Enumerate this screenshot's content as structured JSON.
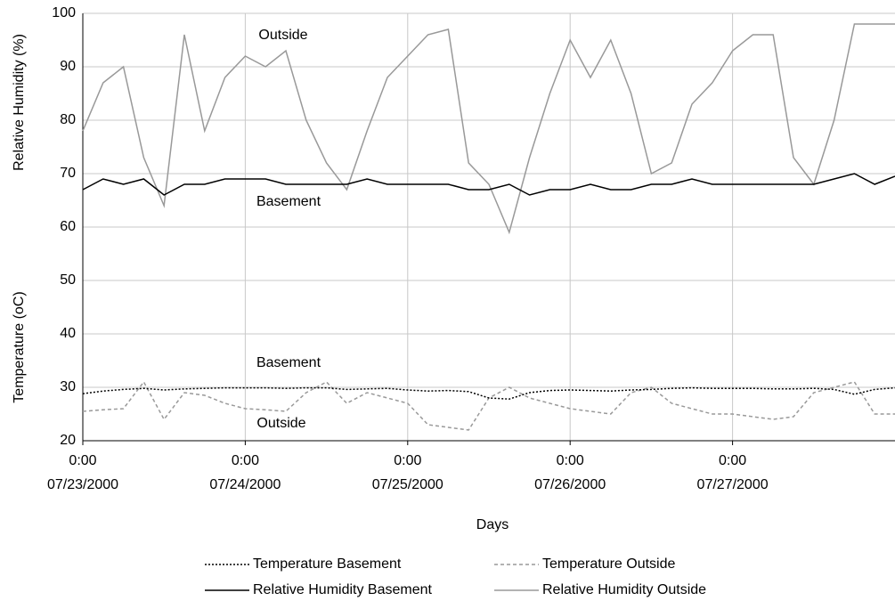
{
  "chart_data": {
    "type": "line",
    "y_label_upper": "Relative Humidity (%)",
    "y_label_lower": "Temperature (oC)",
    "x_label": "Days",
    "annotations": [
      "Outside",
      "Basement",
      "Basement",
      "Outside"
    ],
    "x": [
      "2000-07-23T00:00",
      "2000-07-23T03:00",
      "2000-07-23T06:00",
      "2000-07-23T09:00",
      "2000-07-23T12:00",
      "2000-07-23T15:00",
      "2000-07-23T18:00",
      "2000-07-23T21:00",
      "2000-07-24T00:00",
      "2000-07-24T03:00",
      "2000-07-24T06:00",
      "2000-07-24T09:00",
      "2000-07-24T12:00",
      "2000-07-24T15:00",
      "2000-07-24T18:00",
      "2000-07-24T21:00",
      "2000-07-25T00:00",
      "2000-07-25T03:00",
      "2000-07-25T06:00",
      "2000-07-25T09:00",
      "2000-07-25T12:00",
      "2000-07-25T15:00",
      "2000-07-25T18:00",
      "2000-07-25T21:00",
      "2000-07-26T00:00",
      "2000-07-26T03:00",
      "2000-07-26T06:00",
      "2000-07-26T09:00",
      "2000-07-26T12:00",
      "2000-07-26T15:00",
      "2000-07-26T18:00",
      "2000-07-26T21:00",
      "2000-07-27T00:00",
      "2000-07-27T03:00",
      "2000-07-27T06:00",
      "2000-07-27T09:00",
      "2000-07-27T12:00",
      "2000-07-27T15:00",
      "2000-07-27T18:00",
      "2000-07-27T21:00",
      "2000-07-28T00:00"
    ],
    "xlim": [
      "2000-07-23T00:00",
      "2000-07-28T00:00"
    ],
    "xticks": [
      {
        "value": "2000-07-23T00:00",
        "label": [
          "0:00",
          "07/23/2000"
        ]
      },
      {
        "value": "2000-07-24T00:00",
        "label": [
          "0:00",
          "07/24/2000"
        ]
      },
      {
        "value": "2000-07-25T00:00",
        "label": [
          "0:00",
          "07/25/2000"
        ]
      },
      {
        "value": "2000-07-26T00:00",
        "label": [
          "0:00",
          "07/26/2000"
        ]
      },
      {
        "value": "2000-07-27T00:00",
        "label": [
          "0:00",
          "07/27/2000"
        ]
      }
    ],
    "ylim": [
      20,
      100
    ],
    "yticks": [
      20,
      30,
      40,
      50,
      60,
      70,
      80,
      90,
      100
    ],
    "grid": true,
    "series": [
      {
        "name": "Temperature Basement",
        "color": "#000000",
        "dash": "dotted",
        "values": [
          28.8,
          29.3,
          29.6,
          29.8,
          29.5,
          29.7,
          29.8,
          29.9,
          29.9,
          29.9,
          29.8,
          29.9,
          29.9,
          29.6,
          29.7,
          29.8,
          29.5,
          29.3,
          29.4,
          29.2,
          28.0,
          27.8,
          29.0,
          29.4,
          29.5,
          29.4,
          29.3,
          29.5,
          29.6,
          29.8,
          29.9,
          29.8,
          29.8,
          29.8,
          29.7,
          29.7,
          29.8,
          29.6,
          28.7,
          29.6,
          29.9
        ]
      },
      {
        "name": "Temperature Outside",
        "color": "#999999",
        "dash": "dashed",
        "values": [
          25.5,
          25.8,
          26.0,
          31.0,
          24.0,
          29.0,
          28.5,
          27.0,
          26.0,
          25.8,
          25.5,
          29.0,
          31.0,
          27.0,
          29.0,
          28.0,
          27.0,
          23.0,
          22.5,
          22.0,
          28.0,
          30.0,
          28.0,
          27.0,
          26.0,
          25.5,
          25.0,
          29.0,
          30.0,
          27.0,
          26.0,
          25.0,
          25.0,
          24.5,
          24.0,
          24.5,
          29.0,
          30.0,
          31.0,
          25.0,
          25.0
        ]
      },
      {
        "name": "Relative Humidity Basement",
        "color": "#000000",
        "dash": "solid",
        "values": [
          67,
          69,
          68,
          69,
          66,
          68,
          68,
          69,
          69,
          69,
          68,
          68,
          68,
          68,
          69,
          68,
          68,
          68,
          68,
          67,
          67,
          68,
          66,
          67,
          67,
          68,
          67,
          67,
          68,
          68,
          69,
          68,
          68,
          68,
          68,
          68,
          68,
          69,
          70,
          68,
          69.5
        ]
      },
      {
        "name": "Relative Humidity Outside",
        "color": "#999999",
        "dash": "solid",
        "values": [
          78,
          87,
          90,
          73,
          64,
          96,
          78,
          88,
          92,
          90,
          93,
          80,
          72,
          67,
          78,
          88,
          92,
          96,
          97,
          72,
          68,
          59,
          73,
          85,
          95,
          88,
          95,
          85,
          70,
          72,
          83,
          87,
          93,
          96,
          96,
          73,
          68,
          80,
          98,
          98,
          98
        ]
      }
    ]
  }
}
